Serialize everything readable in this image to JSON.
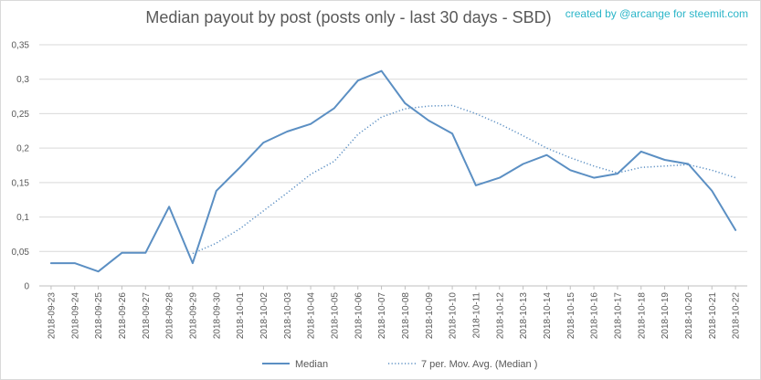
{
  "chart_data": {
    "type": "line",
    "title": "Median payout by post (posts only - last 30 days - SBD)",
    "credit": "created by @arcange for steemit.com",
    "categories": [
      "2018-09-23",
      "2018-09-24",
      "2018-09-25",
      "2018-09-26",
      "2018-09-27",
      "2018-09-28",
      "2018-09-29",
      "2018-09-30",
      "2018-10-01",
      "2018-10-02",
      "2018-10-03",
      "2018-10-04",
      "2018-10-05",
      "2018-10-06",
      "2018-10-07",
      "2018-10-08",
      "2018-10-09",
      "2018-10-10",
      "2018-10-11",
      "2018-10-12",
      "2018-10-13",
      "2018-10-14",
      "2018-10-15",
      "2018-10-16",
      "2018-10-17",
      "2018-10-18",
      "2018-10-19",
      "2018-10-20",
      "2018-10-21",
      "2018-10-22"
    ],
    "yticks": [
      "0",
      "0,05",
      "0,1",
      "0,15",
      "0,2",
      "0,25",
      "0,3",
      "0,35"
    ],
    "ylim": [
      0,
      0.35
    ],
    "grid": true,
    "legend_position": "bottom",
    "series": [
      {
        "name": "Median",
        "style": "solid",
        "color": "#5b8fc3",
        "values": [
          0.033,
          0.033,
          0.021,
          0.048,
          0.048,
          0.115,
          0.033,
          0.138,
          0.172,
          0.208,
          0.224,
          0.235,
          0.258,
          0.298,
          0.312,
          0.265,
          0.24,
          0.221,
          0.146,
          0.157,
          0.177,
          0.19,
          0.168,
          0.157,
          0.163,
          0.195,
          0.183,
          0.177,
          0.138,
          0.081
        ]
      },
      {
        "name": "7 per. Mov. Avg. (Median )",
        "style": "dotted",
        "color": "#5b8fc3",
        "values": [
          null,
          null,
          null,
          null,
          null,
          null,
          0.047,
          0.062,
          0.083,
          0.109,
          0.135,
          0.162,
          0.181,
          0.22,
          0.245,
          0.257,
          0.261,
          0.262,
          0.25,
          0.235,
          0.218,
          0.2,
          0.186,
          0.174,
          0.164,
          0.172,
          0.174,
          0.176,
          0.168,
          0.157
        ]
      }
    ]
  }
}
